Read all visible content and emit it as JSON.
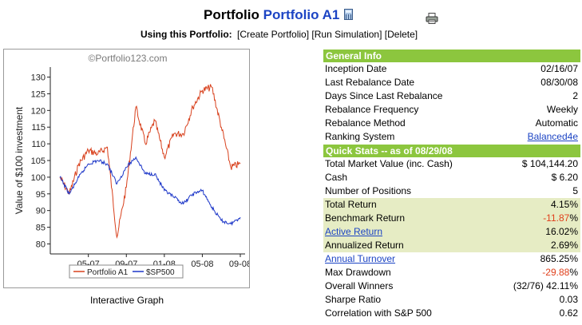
{
  "header": {
    "title_prefix": "Portfolio",
    "portfolio_name": "Portfolio A1",
    "using_label": "Using this Portfolio:",
    "links": [
      "[Create Portfolio]",
      "[Run Simulation]",
      "[Delete]"
    ]
  },
  "chart_data": {
    "type": "line",
    "watermark": "©Portfolio123.com",
    "ylabel": "Value of $100 investment",
    "xlabel": "",
    "ylim": [
      77,
      133
    ],
    "yticks": [
      80,
      85,
      90,
      95,
      100,
      105,
      110,
      115,
      120,
      125,
      130
    ],
    "xticks": [
      "05-07",
      "09-07",
      "01-08",
      "05-08",
      "09-08"
    ],
    "x_start": "02-07",
    "x_end": "09-08",
    "series": [
      {
        "name": "Portfolio A1",
        "color": "#d8401c",
        "x": [
          "02-07",
          "03-07",
          "04-07",
          "05-07",
          "06-07",
          "07-07",
          "08-07",
          "09-07",
          "10-07",
          "11-07",
          "12-07",
          "01-08",
          "02-08",
          "03-08",
          "04-08",
          "05-08",
          "06-08",
          "07-08",
          "08-08",
          "09-08"
        ],
        "values": [
          100,
          95,
          104,
          108,
          107,
          109,
          82,
          97,
          121,
          110,
          117,
          106,
          113,
          113,
          121,
          126,
          127,
          115,
          103,
          104
        ]
      },
      {
        "name": "$SP500",
        "color": "#1c36c8",
        "x": [
          "02-07",
          "03-07",
          "04-07",
          "05-07",
          "06-07",
          "07-07",
          "08-07",
          "09-07",
          "10-07",
          "11-07",
          "12-07",
          "01-08",
          "02-08",
          "03-08",
          "04-08",
          "05-08",
          "06-08",
          "07-08",
          "08-08",
          "09-08"
        ],
        "values": [
          100,
          95,
          100,
          104,
          105,
          104,
          98,
          103,
          106,
          101,
          101,
          96,
          94,
          92,
          95,
          96,
          91,
          87,
          86,
          88
        ]
      }
    ],
    "legend_position": "bottom",
    "caption": "Interactive Graph"
  },
  "general_info": {
    "title": "General Info",
    "rows": [
      {
        "label": "Inception Date",
        "value": "02/16/07"
      },
      {
        "label": "Last Rebalance Date",
        "value": "08/30/08"
      },
      {
        "label": "Days Since Last Rebalance",
        "value": "2"
      },
      {
        "label": "Rebalance Frequency",
        "value": "Weekly"
      },
      {
        "label": "Rebalance Method",
        "value": "Automatic"
      },
      {
        "label": "Ranking System",
        "value": "Balanced4e"
      }
    ]
  },
  "quick_stats": {
    "title": "Quick Stats -- as of 08/29/08",
    "rows": [
      {
        "label": "Total Market Value (inc. Cash)",
        "value": "$ 104,144.20"
      },
      {
        "label": "Cash",
        "value": "$ 6.20"
      },
      {
        "label": "Number of Positions",
        "value": "5"
      },
      {
        "label": "Total Return",
        "value_num": "4.15",
        "value_suffix": "%"
      },
      {
        "label": "Benchmark Return",
        "value_num": "-11.87",
        "value_suffix": "%"
      },
      {
        "label": "Active Return",
        "value_num": "16.02",
        "value_suffix": "%"
      },
      {
        "label": "Annualized Return",
        "value_num": "2.69",
        "value_suffix": "%"
      },
      {
        "label": "Annual Turnover",
        "value_num": "865.25",
        "value_suffix": "%"
      },
      {
        "label": "Max Drawdown",
        "value_num": "-29.88",
        "value_suffix": "%"
      },
      {
        "label": "Overall Winners",
        "value_num": "(32/76) 42.11",
        "value_suffix": "%"
      },
      {
        "label": "Sharpe Ratio",
        "value": "0.03"
      },
      {
        "label": "Correlation with S&P 500",
        "value": "0.62"
      }
    ]
  }
}
